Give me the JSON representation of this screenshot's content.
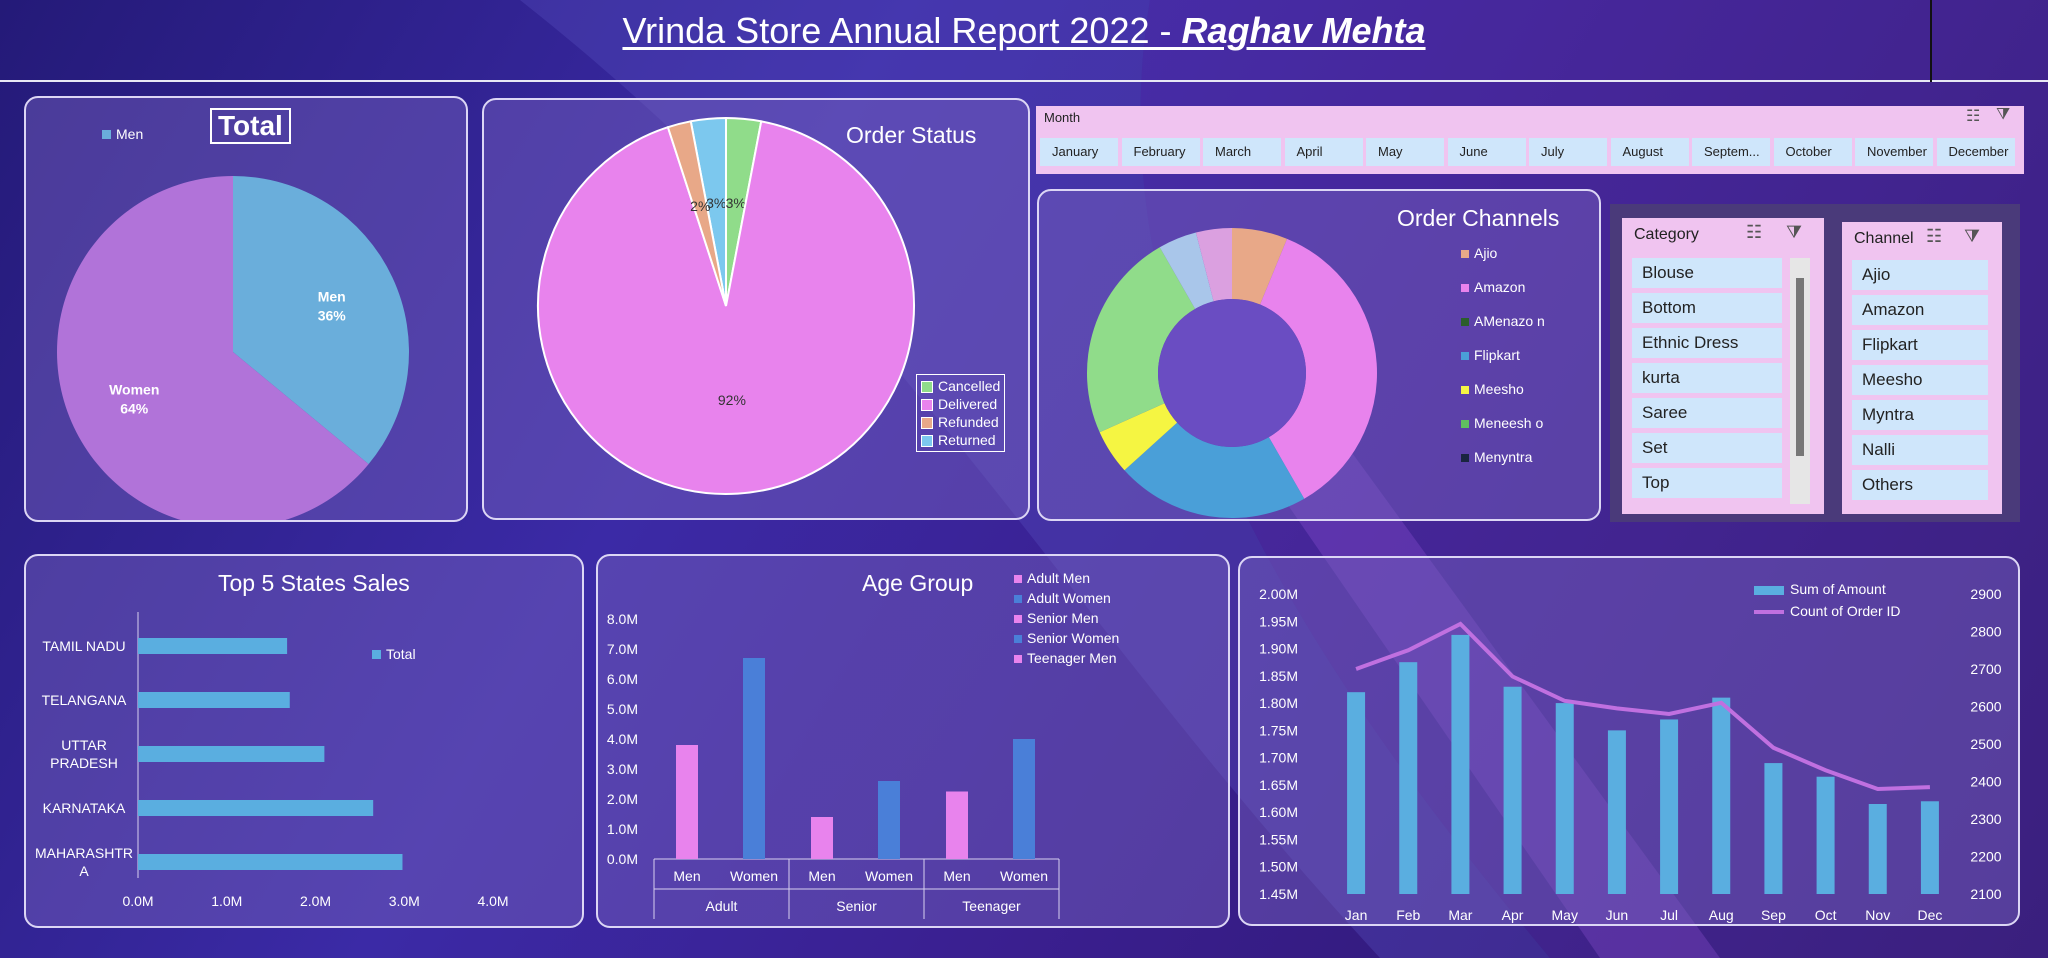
{
  "header": {
    "title_main": "Vrinda Store Annual Report 2022 - ",
    "title_author": "Raghav Mehta"
  },
  "gender_chart": {
    "title": "Total",
    "legend": "Men",
    "slices": [
      {
        "label": "Men",
        "value": 36,
        "pct": "36%",
        "color": "#6aaedb"
      },
      {
        "label": "Women",
        "value": 64,
        "pct": "64%",
        "color": "#b173d9"
      }
    ]
  },
  "order_status": {
    "title": "Order Status",
    "slices": [
      {
        "label": "Cancelled",
        "value": 3,
        "pct": "3%",
        "color": "#90dc8a"
      },
      {
        "label": "Delivered",
        "value": 92,
        "pct": "92%",
        "color": "#e883ed"
      },
      {
        "label": "Refunded",
        "value": 2,
        "pct": "2%",
        "color": "#e8a888"
      },
      {
        "label": "Returned",
        "value": 3,
        "pct": "3%",
        "color": "#7cc8ee"
      }
    ]
  },
  "month_slicer": {
    "header": "Month",
    "items": [
      "January",
      "February",
      "March",
      "April",
      "May",
      "June",
      "July",
      "August",
      "Septem...",
      "October",
      "November",
      "December"
    ]
  },
  "order_channels": {
    "title": "Order Channels",
    "legend": [
      {
        "label": "Ajio",
        "color": "#e8a888"
      },
      {
        "label": "Amazon",
        "color": "#e883ed"
      },
      {
        "label": "AMenazo n",
        "color": "#2b5e2b"
      },
      {
        "label": "Flipkart",
        "color": "#4a9fd8"
      },
      {
        "label": "Meesho",
        "color": "#f5f542"
      },
      {
        "label": "Meneesh o",
        "color": "#60c060"
      },
      {
        "label": "Menyntra",
        "color": "#1a2540"
      }
    ],
    "slices": [
      {
        "label": "Ajio",
        "value": 6.2,
        "color": "#e8a888"
      },
      {
        "label": "Amazon",
        "value": 35.5,
        "color": "#e883ed"
      },
      {
        "label": "Flipkart",
        "value": 21.6,
        "color": "#4a9fd8"
      },
      {
        "label": "Meesho",
        "value": 5,
        "color": "#f5f542"
      },
      {
        "label": "Myntra",
        "value": 23.4,
        "color": "#90dc8a"
      },
      {
        "label": "Nalli",
        "value": 4.3,
        "color": "#a9c6ea"
      },
      {
        "label": "Others",
        "value": 4,
        "color": "#dba0e0"
      }
    ]
  },
  "category_slicer": {
    "header": "Category",
    "items": [
      "Blouse",
      "Bottom",
      "Ethnic Dress",
      "kurta",
      "Saree",
      "Set",
      "Top"
    ]
  },
  "channel_slicer": {
    "header": "Channel",
    "items": [
      "Ajio",
      "Amazon",
      "Flipkart",
      "Meesho",
      "Myntra",
      "Nalli",
      "Others"
    ]
  },
  "states_chart": {
    "title": "Top 5 States Sales",
    "legend": "Total",
    "categories": [
      "TAMIL NADU",
      "TELANGANA",
      "UTTAR PRADESH",
      "KARNATAKA",
      "MAHARASHTRA"
    ],
    "category_lines": [
      [
        "TAMIL NADU"
      ],
      [
        "TELANGANA"
      ],
      [
        "UTTAR",
        "PRADESH"
      ],
      [
        "KARNATAKA"
      ],
      [
        "MAHARASHTR",
        "A"
      ]
    ],
    "values": [
      1.68,
      1.71,
      2.1,
      2.65,
      2.98
    ],
    "xticks": [
      "0.0M",
      "1.0M",
      "2.0M",
      "3.0M",
      "4.0M"
    ],
    "xmax": 4,
    "color": "#5aaee0"
  },
  "age_chart": {
    "title": "Age Group",
    "legend": [
      {
        "label": "Adult Men",
        "color": "#e883ed"
      },
      {
        "label": "Adult Women",
        "color": "#4a7fd8"
      },
      {
        "label": "Senior Men",
        "color": "#e883ed"
      },
      {
        "label": "Senior Women",
        "color": "#4a7fd8"
      },
      {
        "label": "Teenager Men",
        "color": "#e883ed"
      }
    ],
    "groups": [
      "Adult",
      "Senior",
      "Teenager"
    ],
    "subcats": [
      "Men",
      "Women"
    ],
    "values": [
      [
        3.8,
        6.7
      ],
      [
        1.4,
        2.6
      ],
      [
        2.25,
        4.0
      ]
    ],
    "colors": [
      "#e883ed",
      "#4a7fd8"
    ],
    "yticks": [
      "0.0M",
      "1.0M",
      "2.0M",
      "3.0M",
      "4.0M",
      "5.0M",
      "6.0M",
      "7.0M",
      "8.0M"
    ],
    "ymax": 8
  },
  "monthly_chart": {
    "legend": [
      {
        "label": "Sum of Amount",
        "color": "#5aaee0"
      },
      {
        "label": "Count of Order ID",
        "color": "#c070e0"
      }
    ],
    "months": [
      "Jan",
      "Feb",
      "Mar",
      "Apr",
      "May",
      "Jun",
      "Jul",
      "Aug",
      "Sep",
      "Oct",
      "Nov",
      "Dec"
    ],
    "amount": [
      1.82,
      1.875,
      1.925,
      1.83,
      1.8,
      1.75,
      1.77,
      1.81,
      1.69,
      1.665,
      1.615,
      1.62
    ],
    "orders": [
      2700,
      2750,
      2820,
      2680,
      2615,
      2595,
      2580,
      2610,
      2490,
      2430,
      2380,
      2385
    ],
    "y_left": [
      "1.45M",
      "1.50M",
      "1.55M",
      "1.60M",
      "1.65M",
      "1.70M",
      "1.75M",
      "1.80M",
      "1.85M",
      "1.90M",
      "1.95M",
      "2.00M"
    ],
    "y_left_range": [
      1.45,
      2.0
    ],
    "y_right": [
      "2100",
      "2200",
      "2300",
      "2400",
      "2500",
      "2600",
      "2700",
      "2800",
      "2900"
    ],
    "y_right_range": [
      2100,
      2900
    ]
  }
}
